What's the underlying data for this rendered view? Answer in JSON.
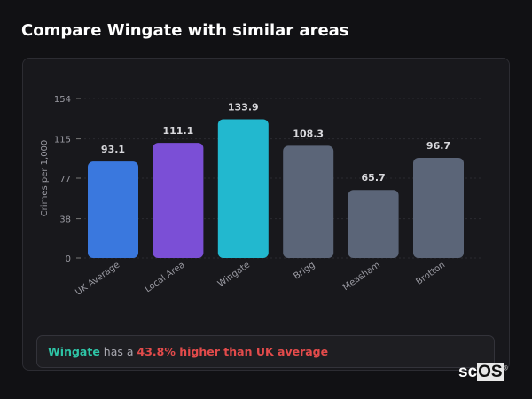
{
  "title": "Compare Wingate with similar areas",
  "chart_data": {
    "type": "bar",
    "title": "",
    "ylabel": "Crimes per 1,000",
    "xlabel": "",
    "ylim": [
      0,
      154
    ],
    "yticks": [
      0,
      38,
      77,
      115,
      154
    ],
    "grid": true,
    "categories": [
      "UK Average",
      "Local Area",
      "Wingate",
      "Brigg",
      "Measham",
      "Brotton"
    ],
    "values": [
      93.1,
      111.1,
      133.9,
      108.3,
      65.7,
      96.7
    ],
    "colors": [
      "#3a78de",
      "#7b4fd6",
      "#22b8cf",
      "#5b6578",
      "#5b6578",
      "#5b6578"
    ]
  },
  "summary": {
    "area": "Wingate",
    "middle": "has a",
    "comparison": "43.8% higher than UK average"
  },
  "logo": {
    "text_a": "sc",
    "text_b": "OS",
    "mark": "®"
  }
}
